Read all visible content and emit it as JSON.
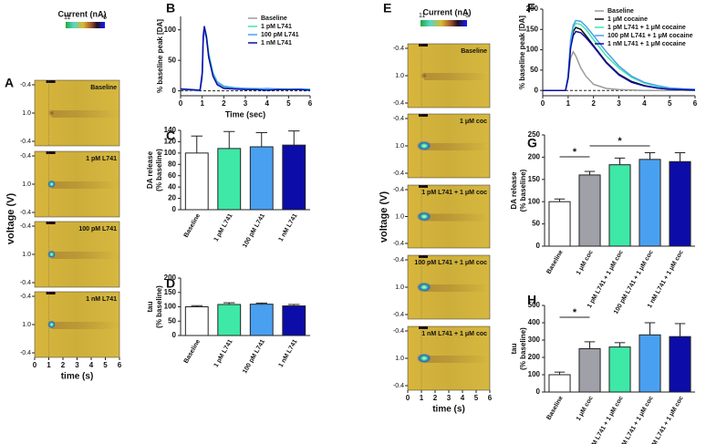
{
  "chart_data": [
    {
      "type": "heatmap",
      "label": "A",
      "colorbar_title": "Current (nA)",
      "colorbar_ticks": [
        11,
        -6
      ],
      "panels": [
        "Baseline",
        "1 pM L741",
        "100 pM L741",
        "1 nM L741"
      ],
      "yticks": [
        -0.4,
        {
          "value": 1,
          "label": "1.0"
        },
        -0.4
      ],
      "xlim": [
        0,
        6
      ],
      "xticks": [
        0,
        1,
        2,
        3,
        4,
        5,
        6
      ],
      "xlabel": "time (s)",
      "ylabel": "voltage (V)"
    },
    {
      "type": "line",
      "label": "B",
      "ylabel": "% baseline peak [DA]",
      "xlabel": "Time (sec)",
      "legend": "upper right",
      "zero_line": true,
      "xlim": [
        0,
        6
      ],
      "xticks": [
        0,
        1,
        2,
        3,
        4,
        5,
        6
      ],
      "ylim": [
        -8,
        122
      ],
      "yticks": [
        0,
        50,
        100
      ],
      "x": [
        0,
        0.5,
        0.9,
        1.0,
        1.05,
        1.1,
        1.2,
        1.3,
        1.5,
        1.7,
        2,
        2.5,
        3,
        3.5,
        4,
        4.5,
        5,
        5.5,
        6
      ],
      "series": [
        {
          "name": "Baseline",
          "color": "#9a9a9a",
          "values": [
            2,
            1,
            0,
            20,
            80,
            100,
            85,
            55,
            25,
            12,
            6,
            4,
            3,
            3,
            2,
            3,
            2,
            2,
            2
          ]
        },
        {
          "name": "1 pM L741",
          "color": "#3ee8a6",
          "values": [
            3,
            2,
            1,
            25,
            85,
            104,
            90,
            62,
            30,
            15,
            8,
            5,
            4,
            4,
            3,
            3,
            3,
            3,
            3
          ]
        },
        {
          "name": "100 pM L741",
          "color": "#4aa0f0",
          "values": [
            2,
            2,
            0,
            22,
            82,
            102,
            87,
            58,
            28,
            14,
            7,
            5,
            4,
            3,
            4,
            3,
            2,
            3,
            2
          ]
        },
        {
          "name": "1 nM L741",
          "color": "#0c0ca8",
          "values": [
            3,
            2,
            1,
            30,
            90,
            106,
            88,
            55,
            24,
            10,
            4,
            3,
            2,
            2,
            1,
            2,
            2,
            2,
            1
          ]
        }
      ]
    },
    {
      "type": "bar",
      "label": "C",
      "ylabel": "DA release\n(% baseline)",
      "ylim": [
        0,
        140
      ],
      "yticks": [
        0,
        20,
        40,
        60,
        80,
        100,
        120,
        140
      ],
      "categories": [
        "Baseline",
        "1 pM L741",
        "100 pM L741",
        "1 nM L741"
      ],
      "values": [
        100,
        108,
        111,
        114
      ],
      "errors": [
        30,
        30,
        25,
        25
      ],
      "colors": [
        "#ffffff",
        "#3ee8a6",
        "#4aa0f0",
        "#0c0ca8"
      ]
    },
    {
      "type": "bar",
      "label": "D",
      "ylabel": "tau\n(% baseline)",
      "ylim": [
        0,
        200
      ],
      "yticks": [
        0,
        50,
        100,
        150,
        200
      ],
      "categories": [
        "Baseline",
        "1 pM L741",
        "100 pM L741",
        "1 nM L741"
      ],
      "values": [
        100,
        108,
        109,
        103
      ],
      "errors": [
        4,
        6,
        4,
        5
      ],
      "colors": [
        "#ffffff",
        "#3ee8a6",
        "#4aa0f0",
        "#0c0ca8"
      ]
    },
    {
      "type": "heatmap",
      "label": "E",
      "colorbar_title": "Current (nA)",
      "colorbar_ticks": [
        11,
        -6
      ],
      "panels": [
        "Baseline",
        "1 μM coc",
        "1 pM L741 + 1 μM coc",
        "100 pM L741 + 1 μM coc",
        "1 nM L741 + 1 μM coc"
      ],
      "yticks": [
        -0.4,
        {
          "value": 1,
          "label": "1.0"
        },
        -0.4
      ],
      "xlim": [
        0,
        6
      ],
      "xticks": [
        0,
        1,
        2,
        3,
        4,
        5,
        6
      ],
      "xlabel": "time (s)",
      "ylabel": "voltage (V)"
    },
    {
      "type": "line",
      "label": "F",
      "ylabel": "% baseline peak [DA]",
      "legend": "upper right",
      "zero_line": true,
      "xlim": [
        0,
        6
      ],
      "xticks": [
        0,
        1,
        2,
        3,
        4,
        5,
        6
      ],
      "ylim": [
        -13,
        200
      ],
      "yticks": [
        0,
        50,
        100,
        150,
        200
      ],
      "x": [
        0,
        0.5,
        0.9,
        1.0,
        1.1,
        1.2,
        1.3,
        1.5,
        1.7,
        2,
        2.5,
        3,
        3.5,
        4,
        4.5,
        5,
        5.5,
        6
      ],
      "series": [
        {
          "name": "Baseline",
          "color": "#9a9a9a",
          "values": [
            0,
            0,
            0,
            30,
            80,
            95,
            85,
            55,
            35,
            15,
            5,
            2,
            1,
            0,
            0,
            0,
            0,
            0
          ]
        },
        {
          "name": "1 μM cocaine",
          "color": "#111111",
          "values": [
            0,
            0,
            0,
            30,
            110,
            145,
            155,
            150,
            135,
            110,
            70,
            40,
            22,
            12,
            6,
            3,
            2,
            1
          ]
        },
        {
          "name": "1 pM L741 + 1 μM cocaine",
          "color": "#3ee8a6",
          "values": [
            0,
            0,
            0,
            35,
            120,
            155,
            165,
            162,
            150,
            125,
            85,
            55,
            32,
            18,
            10,
            5,
            3,
            2
          ]
        },
        {
          "name": "100 pM L741 + 1 μM cocaine",
          "color": "#4aa0f0",
          "values": [
            0,
            0,
            0,
            35,
            125,
            160,
            172,
            170,
            158,
            135,
            95,
            60,
            35,
            20,
            12,
            6,
            4,
            3
          ]
        },
        {
          "name": "1 nM L741 + 1 μM cocaine",
          "color": "#0c0ca8",
          "values": [
            0,
            0,
            0,
            30,
            105,
            135,
            145,
            142,
            130,
            108,
            68,
            38,
            20,
            11,
            6,
            3,
            2,
            1
          ]
        }
      ]
    },
    {
      "type": "bar",
      "label": "G",
      "ylabel": "DA release\n(% baseline)",
      "ylim": [
        0,
        250
      ],
      "yticks": [
        0,
        50,
        100,
        150,
        200,
        250
      ],
      "categories": [
        "Baseline",
        "1 μM coc",
        "1 pM L741 + 1 μM coc",
        "100 pM L741 + 1 μM coc",
        "1 nM L741 + 1 μM coc"
      ],
      "values": [
        100,
        160,
        183,
        195,
        190
      ],
      "errors": [
        6,
        8,
        15,
        15,
        20
      ],
      "colors": [
        "#ffffff",
        "#a0a0a8",
        "#3ee8a6",
        "#4aa0f0",
        "#0c0ca8"
      ],
      "annotations": [
        "*",
        "*"
      ]
    },
    {
      "type": "bar",
      "label": "H",
      "ylabel": "tau\n(% baseline)",
      "ylim": [
        0,
        500
      ],
      "yticks": [
        0,
        100,
        200,
        300,
        400,
        500
      ],
      "categories": [
        "Baseline",
        "1 μM coc",
        "1 pM L741 + 1 μM coc",
        "100 pM L741 + 1 μM coc",
        "1 nM L741 + 1 μM coc"
      ],
      "values": [
        100,
        250,
        260,
        330,
        320
      ],
      "errors": [
        15,
        40,
        25,
        70,
        75
      ],
      "colors": [
        "#ffffff",
        "#a0a0a8",
        "#3ee8a6",
        "#4aa0f0",
        "#0c0ca8"
      ],
      "annotations": [
        "*"
      ]
    }
  ]
}
